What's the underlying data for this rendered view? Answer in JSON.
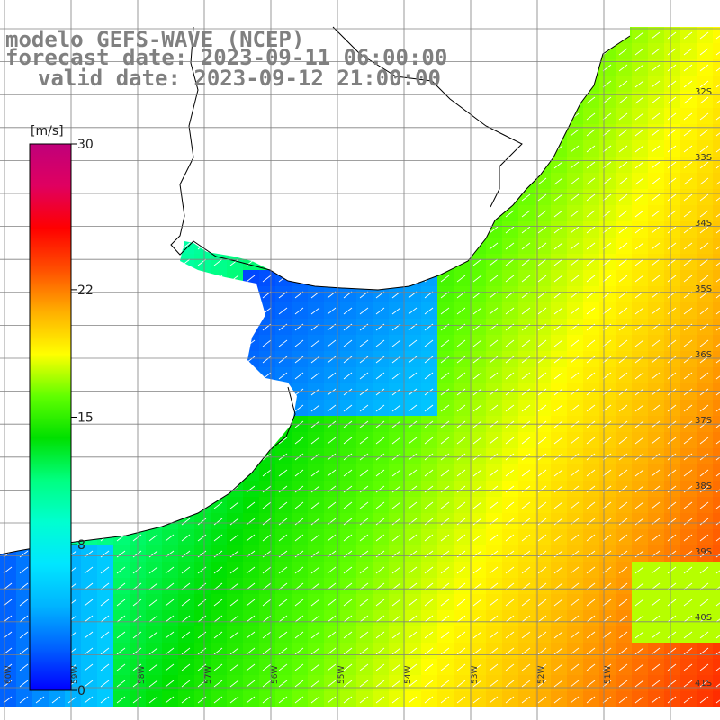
{
  "header": {
    "title": "modelo GEFS-WAVE (NCEP)",
    "forecast_date": "forecast date: 2023-09-11 06:00:00",
    "valid_date": "valid date: 2023-09-12 21:00:00"
  },
  "colorbar": {
    "unit": "[m/s]",
    "ticks": [
      {
        "value": 30,
        "label": "30"
      },
      {
        "value": 22,
        "label": "22"
      },
      {
        "value": 15,
        "label": "15"
      },
      {
        "value": 8,
        "label": "8"
      },
      {
        "value": 0,
        "label": "0"
      }
    ],
    "colors": [
      "#0000ff",
      "#0060ff",
      "#00b4ff",
      "#00e6ff",
      "#00ffd0",
      "#00ff80",
      "#00e000",
      "#60ff00",
      "#ffff00",
      "#ffb000",
      "#ff5000",
      "#ff0000",
      "#e00060",
      "#c0007a"
    ]
  },
  "map": {
    "lat_labels": [
      "32S",
      "33S",
      "34S",
      "35S",
      "36S",
      "37S",
      "38S",
      "39S",
      "40S",
      "41S"
    ],
    "lon_labels": [
      "60W",
      "59W",
      "58W",
      "57W",
      "56W",
      "55W",
      "54W",
      "53W",
      "52W",
      "51W"
    ],
    "variable": "wind speed",
    "units": "m/s"
  },
  "colors": {
    "land": "#ffffff",
    "grid": "#808080",
    "coast": "#000000",
    "header_text": "#808080"
  }
}
